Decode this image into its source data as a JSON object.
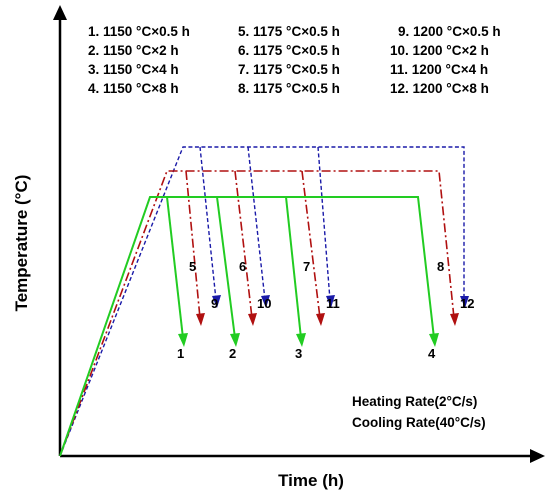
{
  "legend": {
    "col1": [
      "1. 1150 °C×0.5 h",
      "2. 1150 °C×2 h",
      "3. 1150 °C×4 h",
      "4. 1150 °C×8 h"
    ],
    "col2": [
      "5. 1175 °C×0.5 h",
      "6. 1175 °C×0.5 h",
      "7. 1175 °C×0.5 h",
      "8. 1175 °C×0.5 h"
    ],
    "col3": [
      "9.  1200 °C×0.5 h",
      "10.  1200 °C×2 h",
      "11.  1200 °C×4 h",
      "12.  1200 °C×8 h"
    ]
  },
  "axes": {
    "xlabel": "Time (h)",
    "ylabel": "Temperature (°C)"
  },
  "curve_labels": [
    "1",
    "2",
    "3",
    "4",
    "5",
    "6",
    "7",
    "8",
    "9",
    "10",
    "11",
    "12"
  ],
  "rates": {
    "heating": "Heating Rate(2°C/s)",
    "cooling": "Cooling Rate(40°C/s)"
  },
  "colors": {
    "group_1150": "#22cc22",
    "group_1175": "#b01010",
    "group_1200": "#1a1aa8",
    "axis": "#000000"
  }
}
